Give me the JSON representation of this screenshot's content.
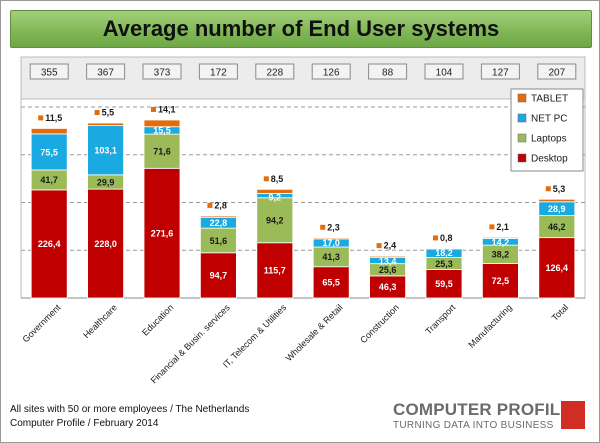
{
  "title": "Average number of End User systems",
  "footnote": {
    "line1": "All sites with 50 or more employees / The Netherlands",
    "line2": "Computer Profile / February 2014"
  },
  "logo": {
    "name": "COMPUTER PROFILE",
    "tagline": "TURNING DATA INTO BUSINESS"
  },
  "colors": {
    "desktop": "#c00000",
    "laptops": "#9bbb59",
    "netpc": "#1ba9e1",
    "tablet": "#e46c0a",
    "title_banner": "#7fb655"
  },
  "chart_data": {
    "type": "bar",
    "stacked": true,
    "title": "Average number of End User systems",
    "categories": [
      "Government",
      "Healthcare",
      "Education",
      "Financial & Busin. services",
      "IT, Telecom & Utilities",
      "Wholesale & Retail",
      "Construction",
      "Transport",
      "Manufacturing",
      "Total"
    ],
    "totals": [
      355,
      367,
      373,
      172,
      228,
      126,
      88,
      104,
      127,
      207
    ],
    "series": [
      {
        "name": "Desktop",
        "values": [
          226.4,
          228.0,
          271.6,
          94.7,
          115.7,
          65.5,
          46.3,
          59.5,
          72.5,
          126.4
        ],
        "labels": [
          "226,4",
          "228,0",
          "271,6",
          "94,7",
          "115,7",
          "65,5",
          "46,3",
          "59,5",
          "72,5",
          "126,4"
        ]
      },
      {
        "name": "Laptops",
        "values": [
          41.7,
          29.9,
          71.6,
          51.6,
          94.2,
          41.3,
          25.6,
          25.3,
          38.2,
          46.2
        ],
        "labels": [
          "41,7",
          "29,9",
          "71,6",
          "51,6",
          "94,2",
          "41,3",
          "25,6",
          "25,3",
          "38,2",
          "46,2"
        ]
      },
      {
        "name": "NET PC",
        "values": [
          75.5,
          103.1,
          15.5,
          22.8,
          9.2,
          17.0,
          13.4,
          18.2,
          14.2,
          28.9
        ],
        "labels": [
          "75,5",
          "103,1",
          "15,5",
          "22,8",
          "9,2",
          "17,0",
          "13,4",
          "18,2",
          "14,2",
          "28,9"
        ]
      },
      {
        "name": "TABLET",
        "values": [
          11.5,
          5.5,
          14.1,
          2.8,
          8.5,
          2.3,
          2.4,
          0.8,
          2.1,
          5.3
        ],
        "labels": [
          "11,5",
          "5,5",
          "14,1",
          "2,8",
          "8,5",
          "2,3",
          "2,4",
          "0,8",
          "2,1",
          "5,3"
        ]
      }
    ],
    "legend": [
      "TABLET",
      "NET PC",
      "Laptops",
      "Desktop"
    ],
    "legend_position": "top-right",
    "ylim": [
      0,
      400
    ],
    "grid": true
  }
}
